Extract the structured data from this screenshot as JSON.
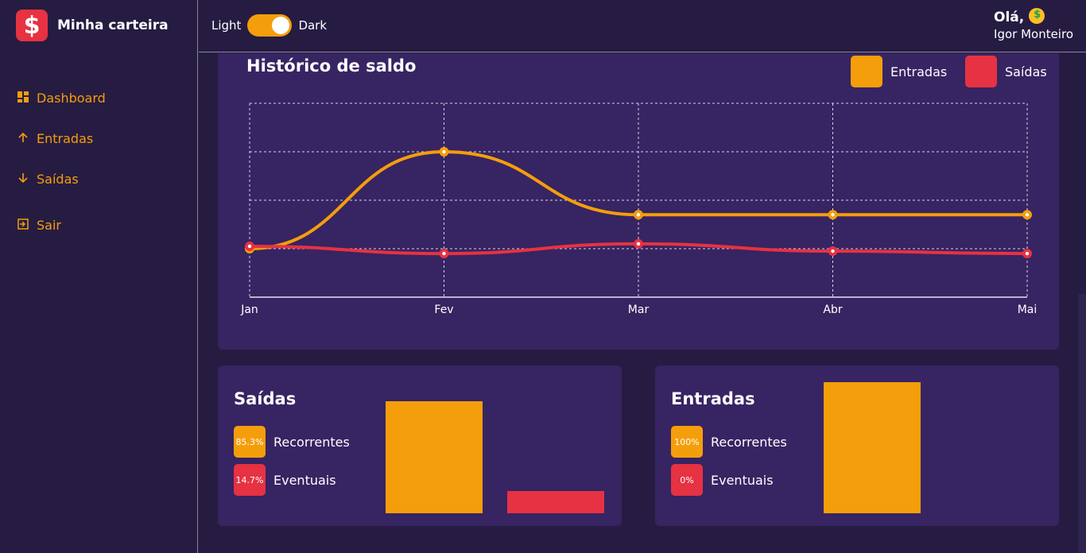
{
  "app": {
    "name": "Minha carteira",
    "logo_symbol": "$"
  },
  "colors": {
    "accent": "#f59e0b",
    "danger": "#e63242",
    "card": "#372462",
    "bg": "#261c42"
  },
  "sidebar": {
    "items": [
      {
        "label": "Dashboard",
        "icon": "dashboard-icon"
      },
      {
        "label": "Entradas",
        "icon": "arrow-up-icon"
      },
      {
        "label": "Saídas",
        "icon": "arrow-down-icon"
      },
      {
        "label": "Sair",
        "icon": "logout-icon"
      }
    ]
  },
  "header": {
    "theme_light": "Light",
    "theme_dark": "Dark",
    "theme_is_dark": true,
    "greeting": "Olá,",
    "user_name": "Igor Monteiro"
  },
  "history": {
    "title": "Histórico de saldo",
    "legend": [
      {
        "label": "Entradas",
        "color": "#f59e0b"
      },
      {
        "label": "Saídas",
        "color": "#e63242"
      }
    ]
  },
  "chart_data": {
    "type": "line",
    "categories": [
      "Jan",
      "Fev",
      "Mar",
      "Abr",
      "Mai"
    ],
    "series": [
      {
        "name": "Entradas",
        "color": "#f59e0b",
        "values": [
          0,
          4.0,
          1.4,
          1.4,
          1.4
        ]
      },
      {
        "name": "Saídas",
        "color": "#e63242",
        "values": [
          0.1,
          -0.2,
          0.2,
          -0.1,
          -0.2
        ]
      }
    ],
    "ylim": [
      -2,
      6
    ],
    "grid": true
  },
  "outflows": {
    "title": "Saídas",
    "items": [
      {
        "percent": "85.3%",
        "label": "Recorrentes",
        "color": "#f59e0b",
        "value": 85.3
      },
      {
        "percent": "14.7%",
        "label": "Eventuais",
        "color": "#e63242",
        "value": 14.7
      }
    ]
  },
  "inflows": {
    "title": "Entradas",
    "items": [
      {
        "percent": "100%",
        "label": "Recorrentes",
        "color": "#f59e0b",
        "value": 100
      },
      {
        "percent": "0%",
        "label": "Eventuais",
        "color": "#e63242",
        "value": 0
      }
    ]
  }
}
